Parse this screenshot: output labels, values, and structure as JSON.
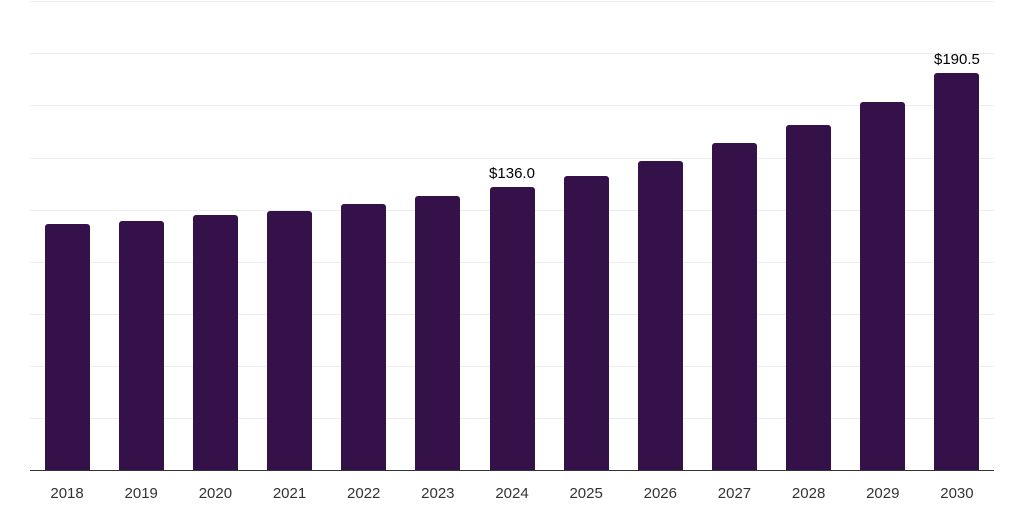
{
  "chart_data": {
    "type": "bar",
    "title": "",
    "categories": [
      "2018",
      "2019",
      "2020",
      "2021",
      "2022",
      "2023",
      "2024",
      "2025",
      "2026",
      "2027",
      "2028",
      "2029",
      "2030"
    ],
    "values": [
      118.1,
      119.7,
      122.5,
      124.5,
      127.8,
      131.7,
      136.0,
      141.3,
      148.3,
      156.8,
      165.6,
      176.8,
      190.5
    ],
    "annotations": [
      {
        "category": "2024",
        "text": "$136.0"
      },
      {
        "category": "2030",
        "text": "$190.5"
      }
    ],
    "xlabel": "",
    "ylabel": "",
    "ylim": [
      0,
      225
    ],
    "grid_step": 25,
    "grid": "on",
    "legend": "none",
    "y_tick_labels_visible": false,
    "colors": {
      "bar": "#341149",
      "gridline": "#ededed",
      "axis": "#333333",
      "tick_label": "#333333",
      "annotation": "#000000",
      "background": "#ffffff"
    }
  }
}
